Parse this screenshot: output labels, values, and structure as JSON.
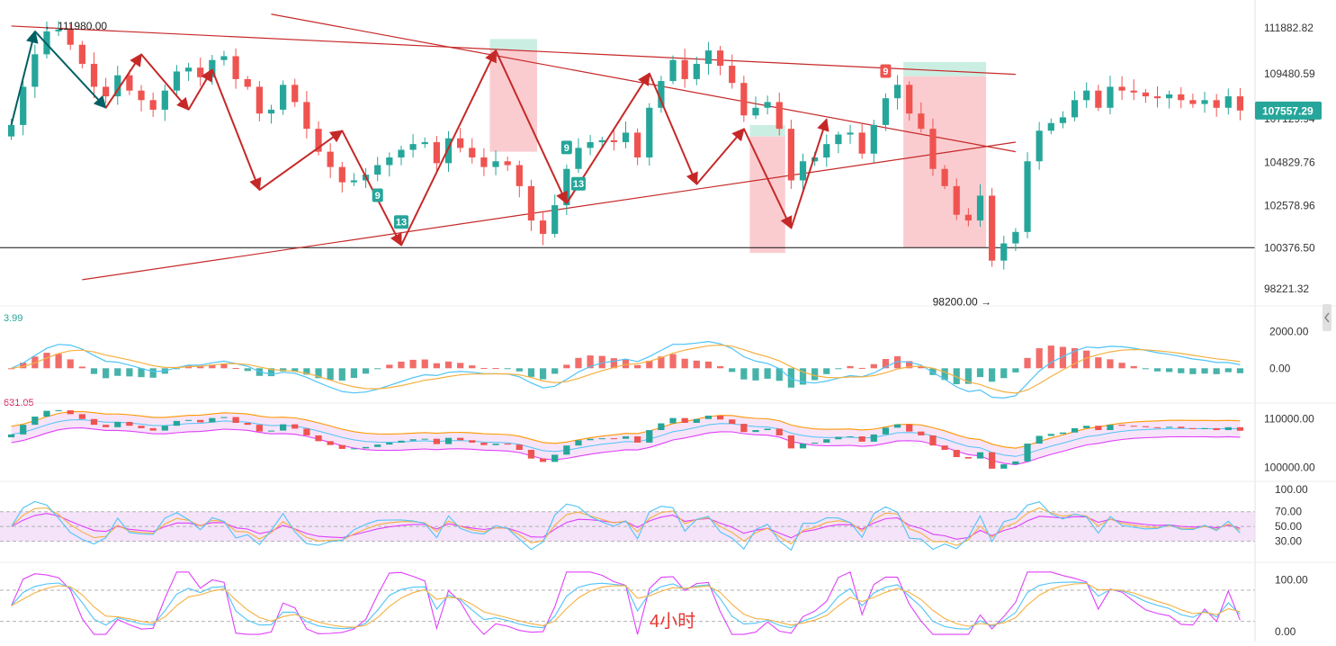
{
  "chart_data": {
    "type": "candlestick",
    "timeframe_label": "4小时",
    "colors": {
      "up": "#26a69a",
      "down": "#ef5350",
      "trend_line": "#c62828",
      "zigzag_teal": "#006064",
      "support_line": "#111111",
      "box_red": "#f8bbc0",
      "box_green": "#b9e8d8",
      "macd_dif": "#4fc3f7",
      "macd_dea": "#f5b041",
      "band_upper": "#ff9800",
      "band_lower": "#e040fb",
      "band_mid": "#4fc3f7",
      "band_fill": "#f3d9f7",
      "rsi_fill": "#f1dcf7",
      "kdj_k": "#4fc3f7",
      "kdj_d": "#f5b041",
      "kdj_j": "#e040fb"
    },
    "price_axis": {
      "ticks": [
        111882.82,
        109480.59,
        104829.76,
        102578.96,
        100376.5,
        98221.32
      ],
      "ylim": [
        97800,
        112400
      ],
      "tick_labels": [
        "111882.82",
        "109480.59",
        "104829.76",
        "102578.96",
        "100376.50",
        "98221.32"
      ]
    },
    "current_price": {
      "value": 107557.29,
      "label": "107557.29"
    },
    "partial_tick_label": "107129.94",
    "high_annotation": {
      "label": "← 111980.00",
      "value": 111980.0,
      "bar": 2
    },
    "low_annotation": {
      "label": "98200.00 →",
      "value": 98200.0,
      "bar": 83
    },
    "support_line": {
      "value": 100376.5
    },
    "candles_close": [
      106800,
      108800,
      110500,
      111700,
      111800,
      111000,
      110000,
      108800,
      108300,
      109400,
      108600,
      108100,
      107600,
      108600,
      109600,
      109800,
      109300,
      110200,
      110400,
      109200,
      108800,
      107400,
      107600,
      108900,
      108000,
      106600,
      105400,
      104600,
      103800,
      103900,
      104200,
      104700,
      105100,
      105500,
      105800,
      105900,
      104800,
      106100,
      105600,
      105100,
      104600,
      104900,
      104700,
      103600,
      101800,
      101100,
      102600,
      104500,
      105600,
      105900,
      106000,
      105900,
      106400,
      105100,
      107700,
      109100,
      110200,
      109200,
      110000,
      110700,
      109900,
      109000,
      107300,
      107700,
      108000,
      106600,
      103900,
      104900,
      105100,
      105800,
      106300,
      106400,
      105300,
      106800,
      108200,
      108900,
      107400,
      106600,
      104500,
      103600,
      102100,
      101800,
      103100,
      99700,
      100600,
      101200,
      104900,
      106500,
      106900,
      107200,
      108100,
      108600,
      107700,
      108800,
      108600,
      108500,
      108300,
      108200,
      108400,
      108100,
      107900,
      108100,
      107700,
      108300,
      107557.29
    ],
    "trend_lines": [
      {
        "from": [
          0,
          111980
        ],
        "to": [
          85,
          109450
        ]
      },
      {
        "from": [
          22,
          112600
        ],
        "to": [
          85,
          105400
        ]
      },
      {
        "from": [
          6,
          98700
        ],
        "to": [
          85,
          105900
        ]
      }
    ],
    "zigzag": [
      [
        0,
        106800
      ],
      [
        2,
        111700
      ],
      [
        8,
        107700
      ],
      [
        11,
        110500
      ],
      [
        15,
        107600
      ],
      [
        17,
        109700
      ],
      [
        21,
        103400
      ],
      [
        28,
        106500
      ],
      [
        33,
        100500
      ],
      [
        41,
        110700
      ],
      [
        47,
        102700
      ],
      [
        54,
        109500
      ],
      [
        58,
        103700
      ],
      [
        62,
        106600
      ],
      [
        66,
        101400
      ],
      [
        69,
        107100
      ]
    ],
    "boxes": [
      {
        "from_bar": 41,
        "to_bar": 44,
        "top": 111300,
        "mid": 110700,
        "bottom": 105400
      },
      {
        "from_bar": 63,
        "to_bar": 65,
        "top": 106800,
        "mid": 106200,
        "bottom": 100100
      },
      {
        "from_bar": 76,
        "to_bar": 82,
        "top": 110100,
        "mid": 109350,
        "bottom": 100376
      }
    ],
    "td_counts": [
      {
        "label": "9",
        "bar": 31,
        "value": 103100,
        "kind": "up"
      },
      {
        "label": "13",
        "bar": 33,
        "value": 101700,
        "kind": "up"
      },
      {
        "label": "9",
        "bar": 47,
        "value": 105600,
        "kind": "up"
      },
      {
        "label": "13",
        "bar": 48,
        "value": 103700,
        "kind": "up"
      },
      {
        "label": "9",
        "bar": 74,
        "value": 109600,
        "kind": "down"
      }
    ],
    "macd": {
      "left_label": "3.99",
      "tick_labels": [
        "2000.00",
        "0.00"
      ],
      "ticks": [
        2000,
        0
      ],
      "ylim": [
        -1500,
        2800
      ]
    },
    "bands": {
      "left_label": "631.05",
      "tick_labels": [
        "110000.00",
        "100000.00"
      ],
      "ticks": [
        110000,
        100000
      ],
      "ylim": [
        98000,
        112000
      ]
    },
    "rsi": {
      "tick_labels": [
        "100.00",
        "70.00",
        "50.00",
        "30.00"
      ],
      "ticks": [
        100,
        70,
        50,
        30
      ],
      "ylim": [
        10,
        105
      ]
    },
    "kdj": {
      "tick_labels": [
        "100.00",
        "0.00"
      ],
      "ticks": [
        100,
        0
      ],
      "ylim": [
        -10,
        125
      ]
    }
  }
}
